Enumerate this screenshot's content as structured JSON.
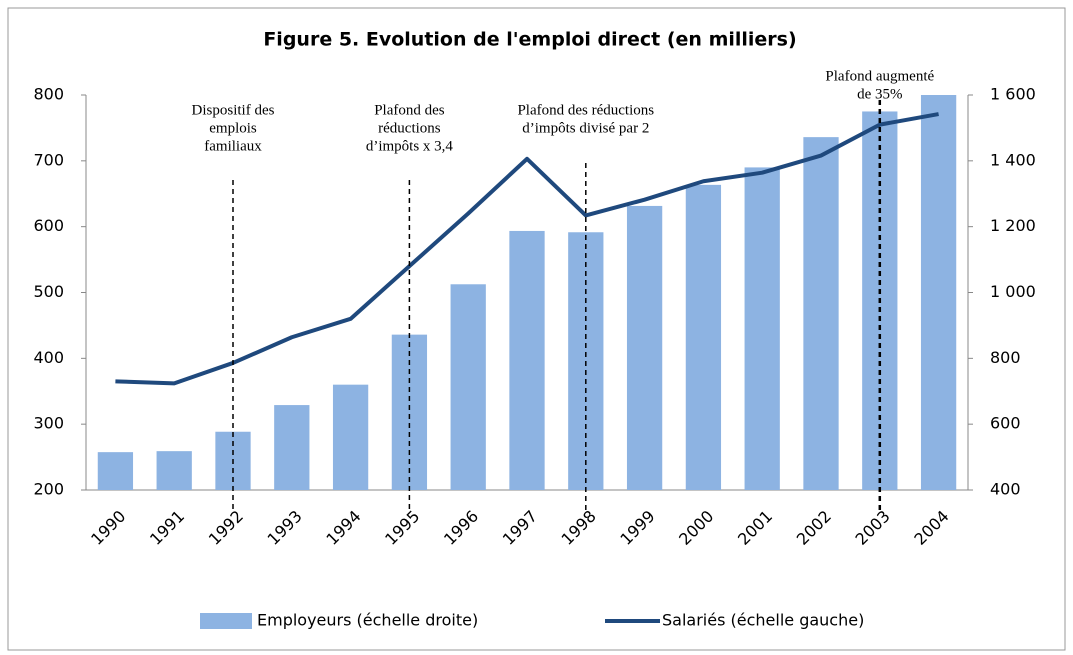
{
  "chart_data": {
    "type": "bar_line",
    "title": "Figure 5. Evolution de l'emploi direct (en milliers)",
    "categories": [
      "1990",
      "1991",
      "1992",
      "1993",
      "1994",
      "1995",
      "1996",
      "1997",
      "1998",
      "1999",
      "2000",
      "2001",
      "2002",
      "2003",
      "2004"
    ],
    "series": [
      {
        "name": "Employeurs (échelle droite)",
        "type": "bar",
        "axis": "y2",
        "color": "#8db3e2",
        "values": [
          515,
          518,
          577,
          658,
          720,
          872,
          1025,
          1187,
          1183,
          1263,
          1327,
          1380,
          1472,
          1550,
          1600
        ]
      },
      {
        "name": "Salariés (échelle gauche)",
        "type": "line",
        "axis": "y",
        "color": "#1f497d",
        "values": [
          365,
          362,
          393,
          432,
          460,
          540,
          620,
          703,
          617,
          641,
          669,
          682,
          708,
          755,
          771
        ]
      }
    ],
    "ylim": [
      200,
      800
    ],
    "yticks": [
      200,
      300,
      400,
      500,
      600,
      700,
      800
    ],
    "y2lim": [
      400,
      1600
    ],
    "y2ticks": [
      400,
      600,
      800,
      {
        "value": 1000,
        "label": "1 000"
      },
      {
        "value": 1200,
        "label": "1 200"
      },
      {
        "value": 1400,
        "label": "1 400"
      },
      {
        "value": 1600,
        "label": "1 600"
      }
    ],
    "annotations": [
      {
        "at": "1992",
        "text": [
          "Dispositif des",
          "emplois",
          "familiaux"
        ]
      },
      {
        "at": "1995",
        "text": [
          "Plafond des",
          "réductions",
          "d’impôts x 3,4"
        ]
      },
      {
        "at": "1998",
        "text": [
          "Plafond des réductions",
          "d’impôts divisé par 2"
        ]
      },
      {
        "at": "2003",
        "text": [
          "Plafond  augmenté",
          "de 35%"
        ]
      }
    ],
    "legend": "bottom"
  }
}
